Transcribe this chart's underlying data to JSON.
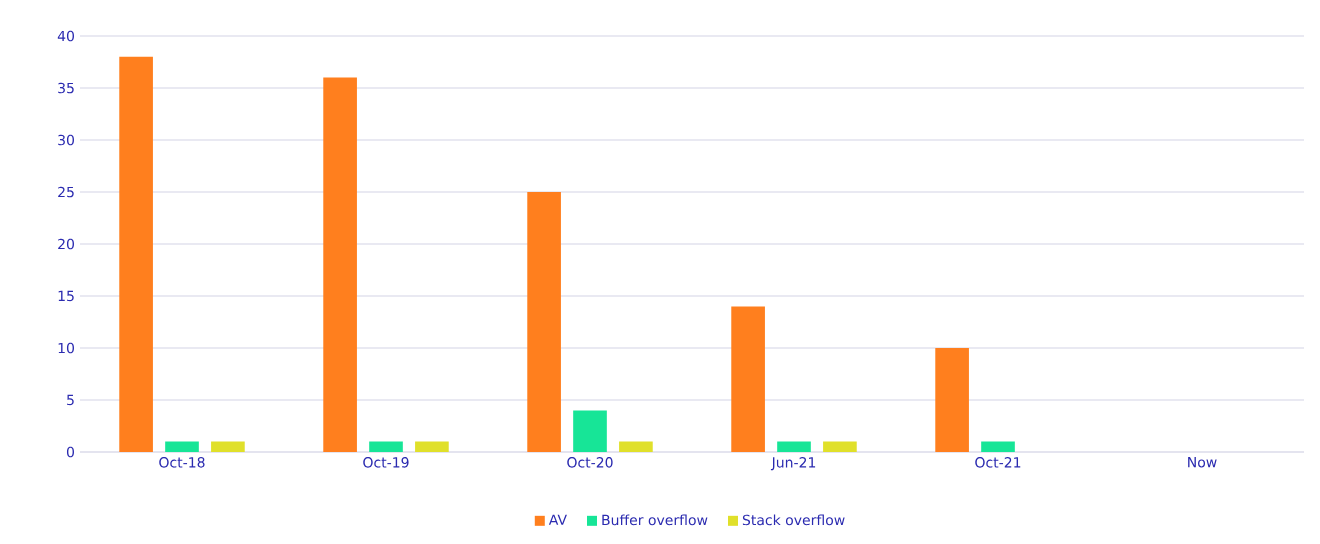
{
  "chart_data": {
    "type": "bar",
    "categories": [
      "Oct-18",
      "Oct-19",
      "Oct-20",
      "Jun-21",
      "Oct-21",
      "Now"
    ],
    "series": [
      {
        "name": "AV",
        "color": "#ff7f1e",
        "values": [
          38,
          36,
          25,
          14,
          10,
          0
        ]
      },
      {
        "name": "Buffer overflow",
        "color": "#17e597",
        "values": [
          1,
          1,
          4,
          1,
          1,
          0
        ]
      },
      {
        "name": "Stack overflow",
        "color": "#e0e02a",
        "values": [
          1,
          1,
          1,
          1,
          0,
          0
        ]
      }
    ],
    "ylim": [
      0,
      40
    ],
    "yticks": [
      0,
      5,
      10,
      15,
      20,
      25,
      30,
      35,
      40
    ],
    "grid": "y",
    "legend": "bottom"
  }
}
